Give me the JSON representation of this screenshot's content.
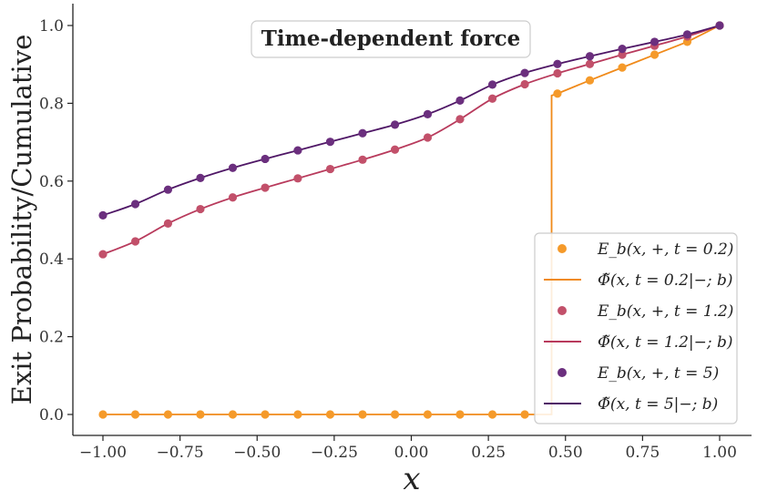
{
  "chart_data": {
    "type": "line",
    "title": "Time-dependent force",
    "xlabel": "x",
    "ylabel": "Exit Probability/Cumulative",
    "xlim": [
      -1.05,
      1.05
    ],
    "ylim": [
      -0.05,
      1.05
    ],
    "xticks": [
      "−1.00",
      "−0.75",
      "−0.50",
      "−0.25",
      "0.00",
      "0.25",
      "0.50",
      "0.75",
      "1.00"
    ],
    "xtick_values": [
      -1.0,
      -0.75,
      -0.5,
      -0.25,
      0.0,
      0.25,
      0.5,
      0.75,
      1.0
    ],
    "yticks": [
      "0.0",
      "0.2",
      "0.4",
      "0.6",
      "0.8",
      "1.0"
    ],
    "ytick_values": [
      0.0,
      0.2,
      0.4,
      0.6,
      0.8,
      1.0
    ],
    "x": [
      -1.0,
      -0.895,
      -0.789,
      -0.684,
      -0.579,
      -0.474,
      -0.368,
      -0.263,
      -0.158,
      -0.053,
      0.053,
      0.158,
      0.263,
      0.368,
      0.474,
      0.579,
      0.684,
      0.789,
      0.895,
      1.0
    ],
    "series": [
      {
        "name": "E_b(x,+,t=0.2)",
        "kind": "points",
        "color": "#f59a2a",
        "x": [
          -1.0,
          -0.895,
          -0.789,
          -0.684,
          -0.579,
          -0.474,
          -0.368,
          -0.263,
          -0.158,
          -0.053,
          0.053,
          0.158,
          0.263,
          0.368,
          0.474,
          0.579,
          0.684,
          0.789,
          0.895,
          1.0
        ],
        "values": [
          0.0,
          0.0,
          0.0,
          0.0,
          0.0,
          0.0,
          0.0,
          0.0,
          0.0,
          0.0,
          0.0,
          0.0,
          0.0,
          0.0,
          0.825,
          0.859,
          0.892,
          0.925,
          0.958,
          1.0
        ]
      },
      {
        "name": "Φ̃(x,t=0.2|−;b)",
        "kind": "line",
        "color": "#f08a1a",
        "x": [
          -1.0,
          0.455,
          0.455,
          0.474,
          0.579,
          0.684,
          0.789,
          0.895,
          1.0
        ],
        "values": [
          0.0,
          0.0,
          0.82,
          0.825,
          0.859,
          0.892,
          0.925,
          0.958,
          1.0
        ]
      },
      {
        "name": "E_b(x,+,t=1.2)",
        "kind": "points",
        "color": "#c2506a",
        "x": [
          -1.0,
          -0.895,
          -0.789,
          -0.684,
          -0.579,
          -0.474,
          -0.368,
          -0.263,
          -0.158,
          -0.053,
          0.053,
          0.158,
          0.263,
          0.368,
          0.474,
          0.579,
          0.684,
          0.789,
          0.895,
          1.0
        ],
        "values": [
          0.412,
          0.445,
          0.491,
          0.528,
          0.558,
          0.583,
          0.607,
          0.631,
          0.655,
          0.681,
          0.712,
          0.759,
          0.812,
          0.849,
          0.877,
          0.901,
          0.925,
          0.948,
          0.972,
          1.0
        ]
      },
      {
        "name": "Φ̃(x,t=1.2|−;b)",
        "kind": "line",
        "color": "#b83a5c",
        "x": [
          -1.0,
          -0.895,
          -0.789,
          -0.684,
          -0.579,
          -0.474,
          -0.368,
          -0.263,
          -0.158,
          -0.053,
          0.053,
          0.158,
          0.263,
          0.368,
          0.474,
          0.579,
          0.684,
          0.789,
          0.895,
          1.0
        ],
        "values": [
          0.412,
          0.445,
          0.491,
          0.528,
          0.558,
          0.583,
          0.607,
          0.631,
          0.655,
          0.681,
          0.712,
          0.759,
          0.812,
          0.849,
          0.877,
          0.901,
          0.925,
          0.948,
          0.972,
          1.0
        ]
      },
      {
        "name": "E_b(x,+,t=5)",
        "kind": "points",
        "color": "#6b2f7e",
        "x": [
          -1.0,
          -0.895,
          -0.789,
          -0.684,
          -0.579,
          -0.474,
          -0.368,
          -0.263,
          -0.158,
          -0.053,
          0.053,
          0.158,
          0.263,
          0.368,
          0.474,
          0.579,
          0.684,
          0.789,
          0.895,
          1.0
        ],
        "values": [
          0.512,
          0.541,
          0.578,
          0.608,
          0.634,
          0.657,
          0.679,
          0.701,
          0.723,
          0.745,
          0.772,
          0.807,
          0.848,
          0.878,
          0.901,
          0.921,
          0.94,
          0.958,
          0.977,
          1.0
        ]
      },
      {
        "name": "Φ̃(x,t=5|−;b)",
        "kind": "line",
        "color": "#4f1766",
        "x": [
          -1.0,
          -0.895,
          -0.789,
          -0.684,
          -0.579,
          -0.474,
          -0.368,
          -0.263,
          -0.158,
          -0.053,
          0.053,
          0.158,
          0.263,
          0.368,
          0.474,
          0.579,
          0.684,
          0.789,
          0.895,
          1.0
        ],
        "values": [
          0.512,
          0.541,
          0.578,
          0.608,
          0.634,
          0.657,
          0.679,
          0.701,
          0.723,
          0.745,
          0.772,
          0.807,
          0.848,
          0.878,
          0.901,
          0.921,
          0.94,
          0.958,
          0.977,
          1.0
        ]
      }
    ],
    "legend": {
      "position": "bottom-right",
      "entries": [
        {
          "label": "E_b(x, +, t = 0.2)",
          "symbol": "point",
          "color": "#f59a2a"
        },
        {
          "label": "Φ̃(x, t = 0.2|−; b)",
          "symbol": "line",
          "color": "#f08a1a"
        },
        {
          "label": "E_b(x, +, t = 1.2)",
          "symbol": "point",
          "color": "#c2506a"
        },
        {
          "label": "Φ̃(x, t = 1.2|−; b)",
          "symbol": "line",
          "color": "#b83a5c"
        },
        {
          "label": "E_b(x, +, t = 5)",
          "symbol": "point",
          "color": "#6b2f7e"
        },
        {
          "label": "Φ̃(x, t = 5|−; b)",
          "symbol": "line",
          "color": "#4f1766"
        }
      ]
    }
  }
}
